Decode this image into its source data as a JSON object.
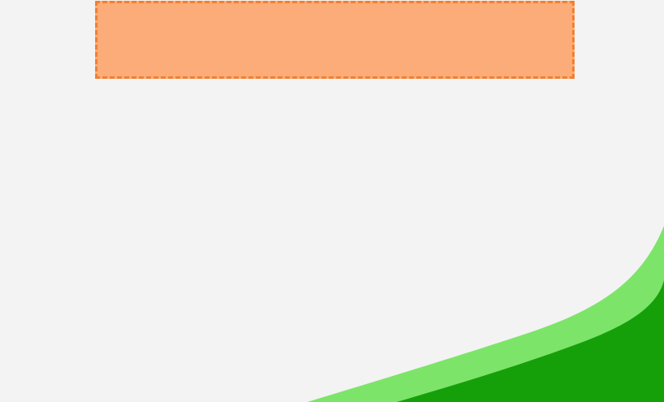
{
  "scene": {
    "background_color": "#f3f3f3"
  },
  "drop_zone": {
    "fill_color": "#fbac78",
    "border_color": "#f47e2e",
    "border_style": "dashed"
  },
  "terrain": {
    "light_hill_color": "#7de46a",
    "dark_hill_color": "#15a00a"
  }
}
